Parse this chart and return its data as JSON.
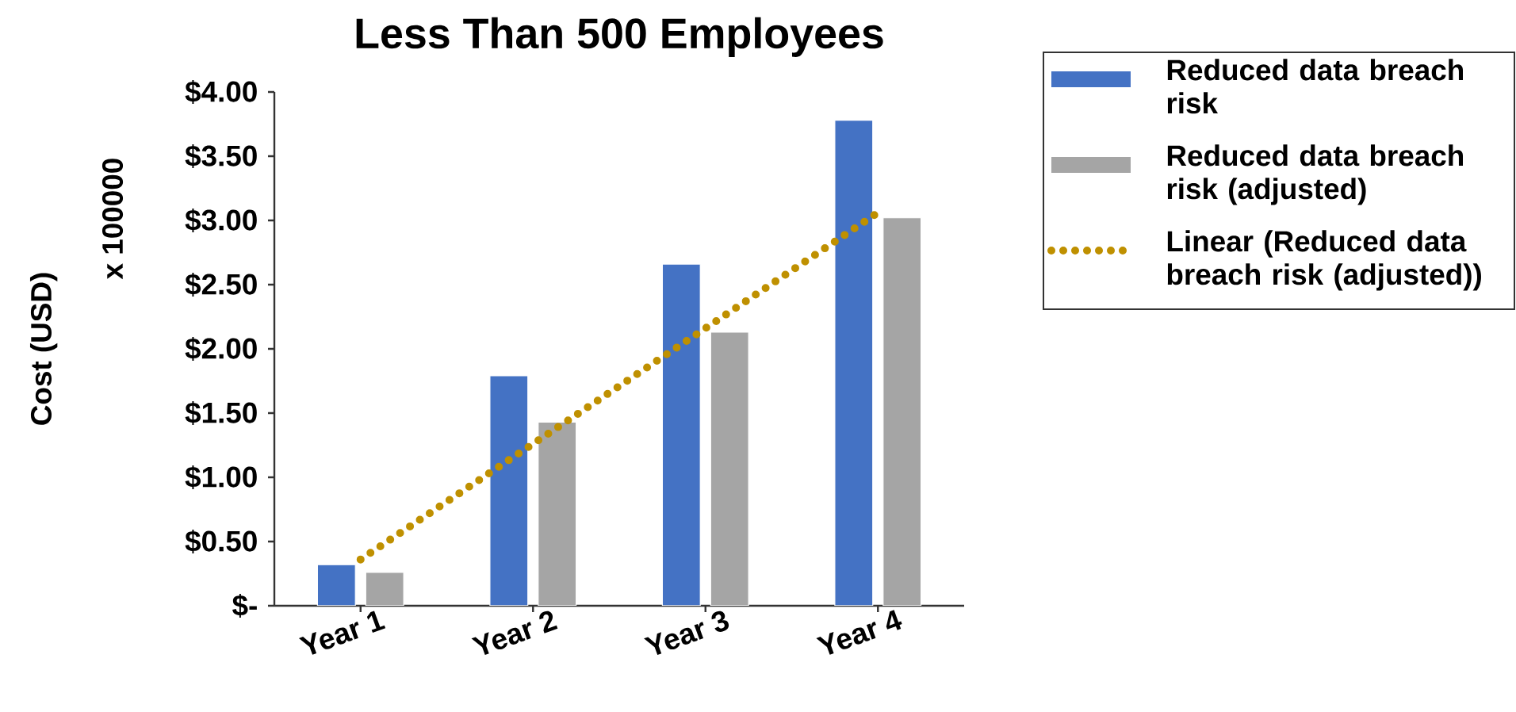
{
  "chart_data": {
    "type": "bar",
    "title": "Less Than 500 Employees",
    "ylabel": "Cost (USD)",
    "annotations": [
      "x 100000"
    ],
    "categories": [
      "Year 1",
      "Year 2",
      "Year 3",
      "Year 4"
    ],
    "series": [
      {
        "name": "Reduced data breach risk",
        "color": "#4472c4",
        "values": [
          0.32,
          1.79,
          2.66,
          3.78
        ]
      },
      {
        "name": "Reduced data breach risk (adjusted)",
        "color": "#a5a5a5",
        "values": [
          0.26,
          1.43,
          2.13,
          3.02
        ]
      },
      {
        "name": "Linear (Reduced data breach risk (adjusted))",
        "type": "line",
        "line_style": "dotted",
        "color": "#bf9000",
        "values": [
          0.36,
          1.26,
          2.16,
          3.06
        ]
      }
    ],
    "ylim": [
      0,
      4
    ],
    "yticks": [
      {
        "value": 0,
        "label": "$-"
      },
      {
        "value": 0.5,
        "label": "$0.50"
      },
      {
        "value": 1,
        "label": "$1.00"
      },
      {
        "value": 1.5,
        "label": "$1.50"
      },
      {
        "value": 2,
        "label": "$2.00"
      },
      {
        "value": 2.5,
        "label": "$2.50"
      },
      {
        "value": 3,
        "label": "$3.00"
      },
      {
        "value": 3.5,
        "label": "$3.50"
      },
      {
        "value": 4,
        "label": "$4.00"
      }
    ],
    "grid": false,
    "legend": "right",
    "marker": "none"
  }
}
